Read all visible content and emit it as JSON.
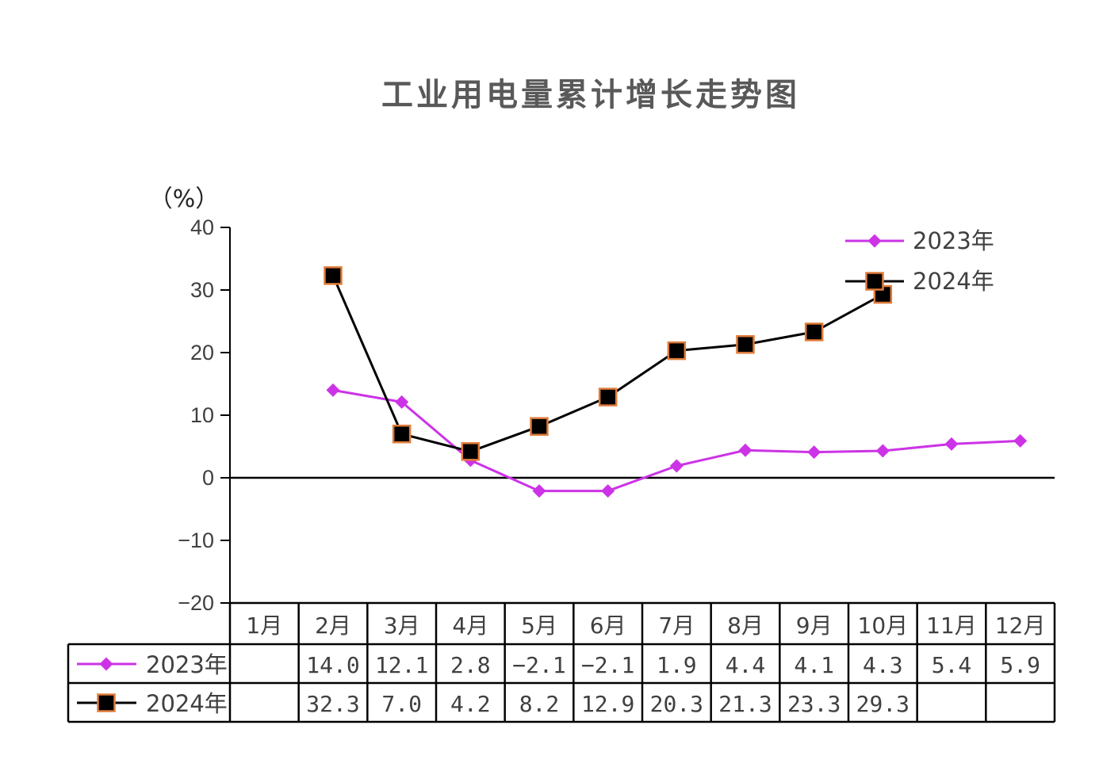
{
  "chart_data": {
    "type": "line",
    "title": "工业用电量累计增长走势图",
    "ylabel": "（%）",
    "ylim": [
      -20,
      40
    ],
    "y_ticks": [
      "40",
      "30",
      "20",
      "10",
      "0",
      "−10",
      "−20"
    ],
    "categories": [
      "1月",
      "2月",
      "3月",
      "4月",
      "5月",
      "6月",
      "7月",
      "8月",
      "9月",
      "10月",
      "11月",
      "12月"
    ],
    "series": [
      {
        "name": "2023年",
        "color": "#CC33E6",
        "marker": "diamond",
        "values": [
          null,
          14.0,
          12.1,
          2.8,
          -2.1,
          -2.1,
          1.9,
          4.4,
          4.1,
          4.3,
          5.4,
          5.9
        ],
        "labels": [
          "",
          "14.0",
          "12.1",
          "2.8",
          "−2.1",
          "−2.1",
          "1.9",
          "4.4",
          "4.1",
          "4.3",
          "5.4",
          "5.9"
        ]
      },
      {
        "name": "2024年",
        "color": "#000000",
        "marker": "square",
        "marker_edge": "#E07B39",
        "values": [
          null,
          32.3,
          7.0,
          4.2,
          8.2,
          12.9,
          20.3,
          21.3,
          23.3,
          29.3,
          null,
          null
        ],
        "labels": [
          "",
          "32.3",
          "7.0",
          "4.2",
          "8.2",
          "12.9",
          "20.3",
          "21.3",
          "23.3",
          "29.3",
          "",
          ""
        ]
      }
    ],
    "legend_position": "top-right",
    "grid": false
  }
}
